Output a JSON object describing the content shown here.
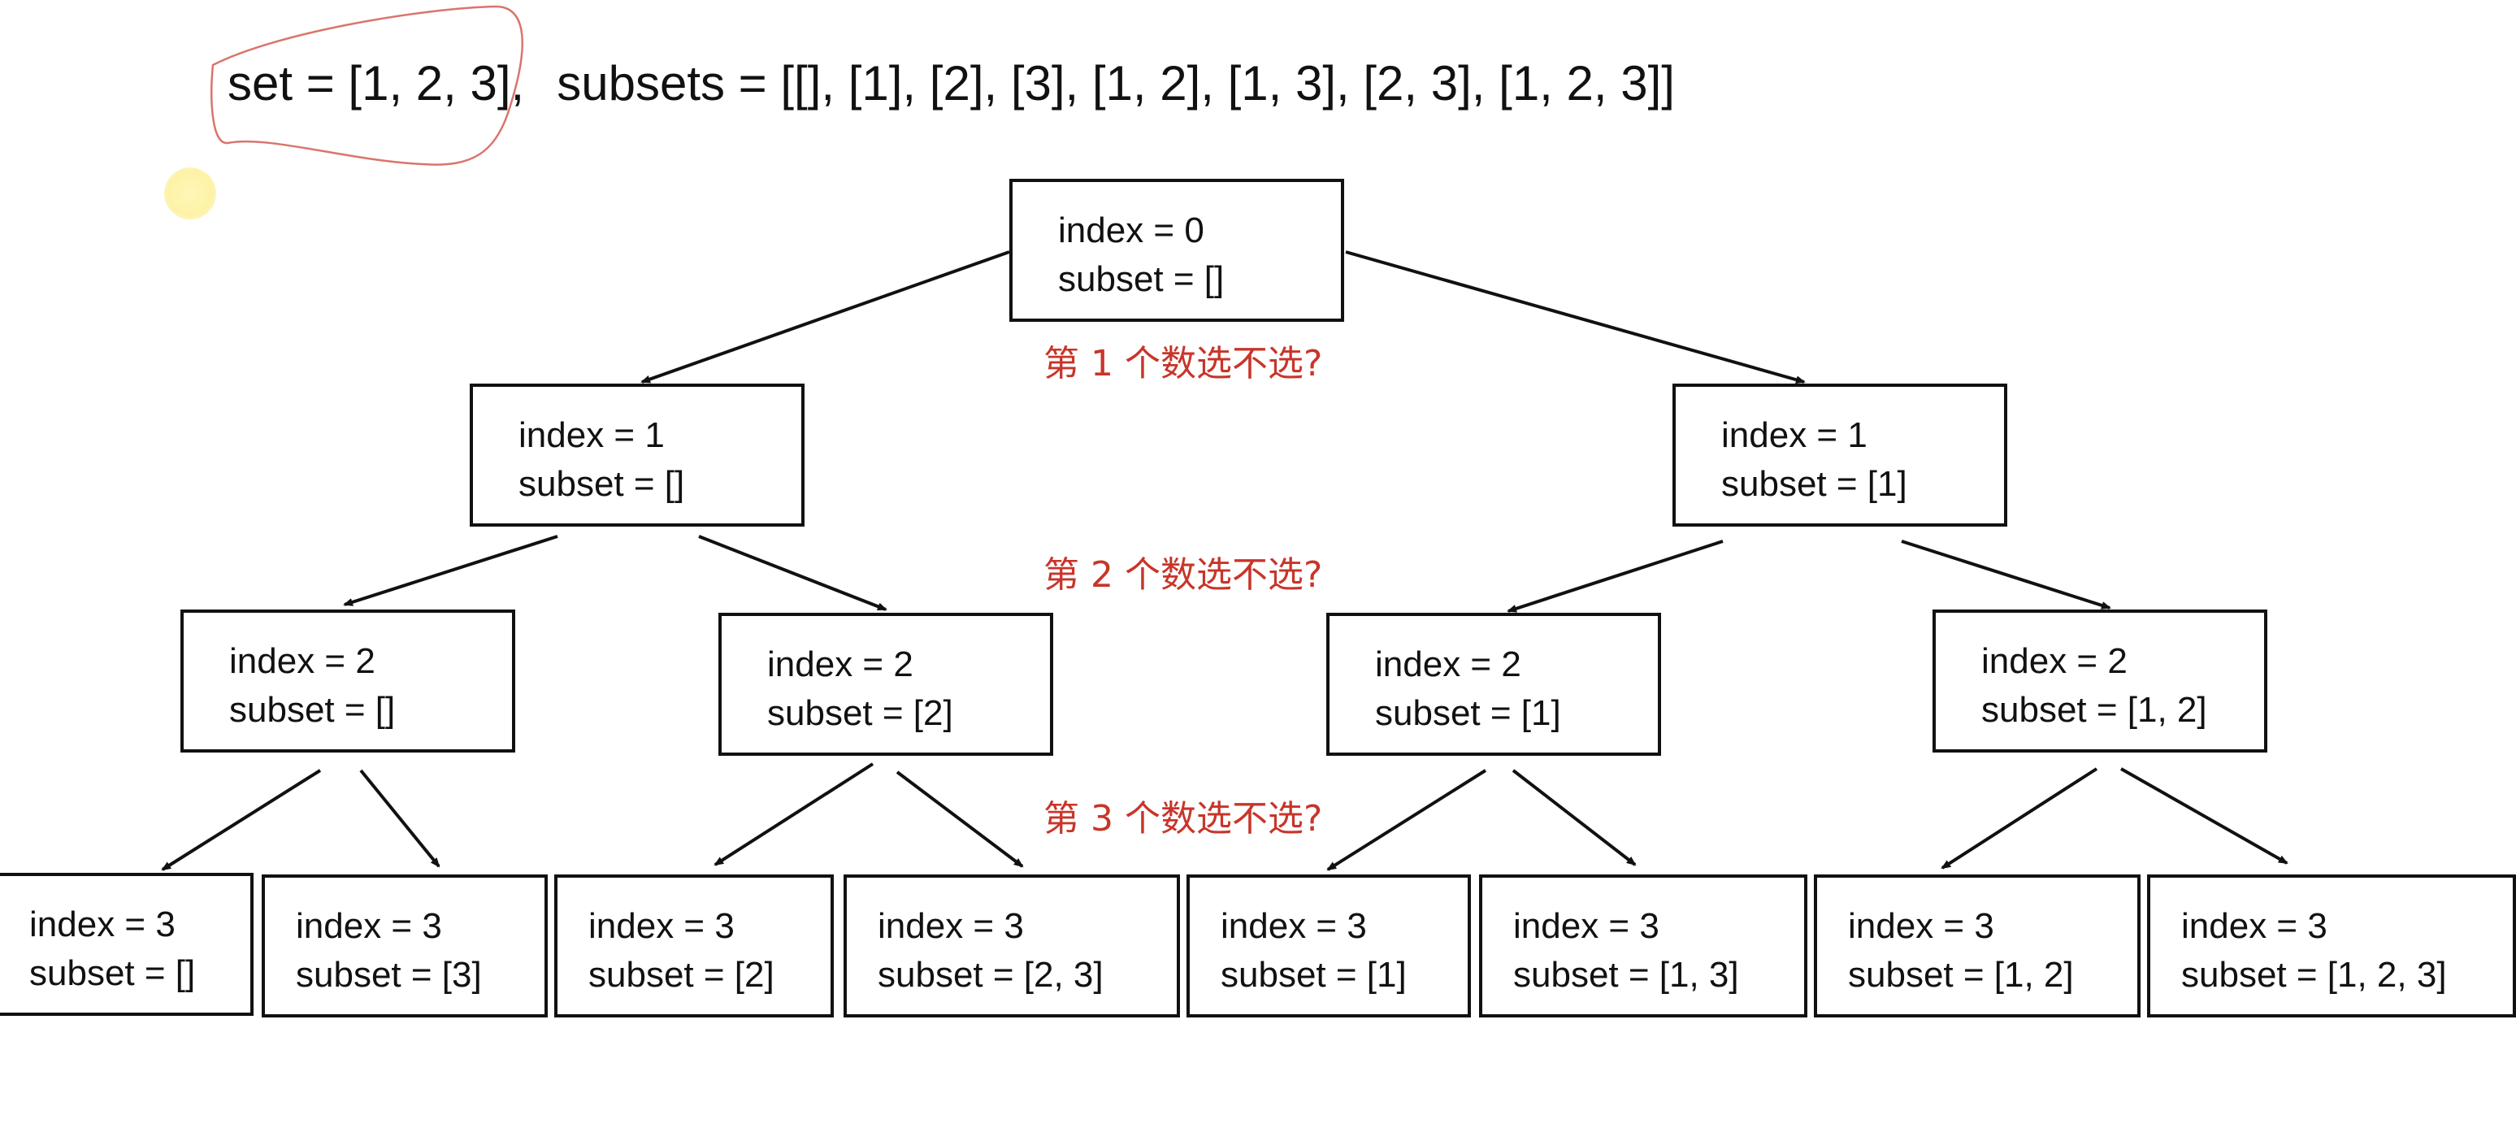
{
  "header": {
    "set_label": "set = [1, 2, 3],",
    "subsets_label": "subsets = [[], [1], [2], [3], [1, 2], [1, 3], [2, 3], [1, 2, 3]]"
  },
  "questions": [
    "第 1 个数选不选?",
    "第 2 个数选不选?",
    "第 3 个数选不选?"
  ],
  "nodes": {
    "root": {
      "index": "index = 0",
      "subset": "subset = []"
    },
    "l1_left": {
      "index": "index = 1",
      "subset": "subset = []"
    },
    "l1_right": {
      "index": "index = 1",
      "subset": "subset = [1]"
    },
    "l2_0": {
      "index": "index = 2",
      "subset": "subset = []"
    },
    "l2_1": {
      "index": "index = 2",
      "subset": "subset = [2]"
    },
    "l2_2": {
      "index": "index = 2",
      "subset": "subset = [1]"
    },
    "l2_3": {
      "index": "index = 2",
      "subset": "subset = [1, 2]"
    },
    "l3_0": {
      "index": "index = 3",
      "subset": "subset = []"
    },
    "l3_1": {
      "index": "index = 3",
      "subset": "subset = [3]"
    },
    "l3_2": {
      "index": "index = 3",
      "subset": "subset = [2]"
    },
    "l3_3": {
      "index": "index = 3",
      "subset": "subset = [2, 3]"
    },
    "l3_4": {
      "index": "index = 3",
      "subset": "subset = [1]"
    },
    "l3_5": {
      "index": "index = 3",
      "subset": "subset = [1, 3]"
    },
    "l3_6": {
      "index": "index = 3",
      "subset": "subset = [1, 2]"
    },
    "l3_7": {
      "index": "index = 3",
      "subset": "subset = [1, 2, 3]"
    }
  },
  "colors": {
    "question_text": "#c8352a",
    "annotation": "#d9756c",
    "laser_pointer": "#fdf2a6"
  }
}
